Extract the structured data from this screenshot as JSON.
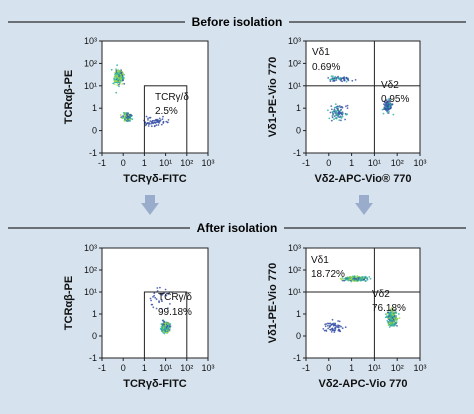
{
  "sections": {
    "before_title": "Before isolation",
    "after_title": "After isolation"
  },
  "colors": {
    "background": "#d6e3ef",
    "arrow": "#9aaccc",
    "density_low": "#3a52a8",
    "density_mid": "#2fb3a0",
    "density_high": "#9fdc48"
  },
  "axis_ticks": [
    "-1",
    "0",
    "1",
    "10¹",
    "10²",
    "10³"
  ],
  "chart_data": [
    {
      "type": "scatter",
      "panel": "before-left",
      "xlabel": "TCRγδ-FITC",
      "ylabel": "TCRαβ-PE",
      "xlim": [
        -1,
        1000
      ],
      "ylim": [
        -1,
        1000
      ],
      "gates": [
        {
          "name": "TCRγ/δ",
          "percent": "2.5%",
          "x": [
            1,
            100
          ],
          "y": [
            -1,
            10
          ]
        }
      ],
      "populations": [
        {
          "x": -0.2,
          "y": 25,
          "spread": [
            0.35,
            0.5
          ],
          "count": 260,
          "density": "high"
        },
        {
          "x": 0.2,
          "y": 0.6,
          "spread": [
            0.3,
            0.3
          ],
          "count": 180,
          "density": "high"
        },
        {
          "x": 3,
          "y": 0.4,
          "spread": [
            1.0,
            0.35
          ],
          "count": 60,
          "density": "low"
        }
      ]
    },
    {
      "type": "scatter",
      "panel": "before-right",
      "xlabel": "Vδ2-APC-Vio® 770",
      "ylabel": "Vδ1-PE-Vio 770",
      "xlim": [
        -1,
        1000
      ],
      "ylim": [
        -1,
        1000
      ],
      "gates": [
        {
          "name": "Vδ1",
          "percent": "0.69%",
          "x": [
            -1,
            10
          ],
          "y": [
            10,
            1000
          ]
        },
        {
          "name": "Vδ2",
          "percent": "0.95%",
          "x": [
            10,
            1000
          ],
          "y": [
            -1,
            10
          ]
        }
      ],
      "populations": [
        {
          "x": 0.5,
          "y": 20,
          "spread": [
            1.0,
            0.2
          ],
          "count": 60,
          "density": "mid"
        },
        {
          "x": 0.4,
          "y": 0.8,
          "spread": [
            0.6,
            0.5
          ],
          "count": 90,
          "density": "mid"
        },
        {
          "x": 40,
          "y": 1.2,
          "spread": [
            0.3,
            0.4
          ],
          "count": 140,
          "density": "mid"
        }
      ]
    },
    {
      "type": "scatter",
      "panel": "after-left",
      "xlabel": "TCRγδ-FITC",
      "ylabel": "TCRαβ-PE",
      "xlim": [
        -1,
        1000
      ],
      "ylim": [
        -1,
        1000
      ],
      "gates": [
        {
          "name": "TCRγ/δ",
          "percent": "99.18%",
          "x": [
            1,
            100
          ],
          "y": [
            -1,
            10
          ]
        }
      ],
      "populations": [
        {
          "x": 10,
          "y": 0.4,
          "spread": [
            0.3,
            0.35
          ],
          "count": 360,
          "density": "high"
        },
        {
          "x": 5,
          "y": 5,
          "spread": [
            1.0,
            0.8
          ],
          "count": 30,
          "density": "low"
        }
      ]
    },
    {
      "type": "scatter",
      "panel": "after-right",
      "xlabel": "Vδ2-APC-Vio 770",
      "ylabel": "Vδ1-PE-Vio 770",
      "xlim": [
        -1,
        1000
      ],
      "ylim": [
        -1,
        1000
      ],
      "gates": [
        {
          "name": "Vδ1",
          "percent": "18.72%",
          "x": [
            -1,
            10
          ],
          "y": [
            10,
            1000
          ]
        },
        {
          "name": "Vδ2",
          "percent": "76.18%",
          "x": [
            10,
            1000
          ],
          "y": [
            -1,
            10
          ]
        }
      ],
      "populations": [
        {
          "x": 1.5,
          "y": 40,
          "spread": [
            0.8,
            0.15
          ],
          "count": 260,
          "density": "high"
        },
        {
          "x": 60,
          "y": 0.8,
          "spread": [
            0.3,
            0.55
          ],
          "count": 380,
          "density": "high"
        },
        {
          "x": 0.2,
          "y": 0.4,
          "spread": [
            0.7,
            0.5
          ],
          "count": 60,
          "density": "low"
        }
      ]
    }
  ]
}
